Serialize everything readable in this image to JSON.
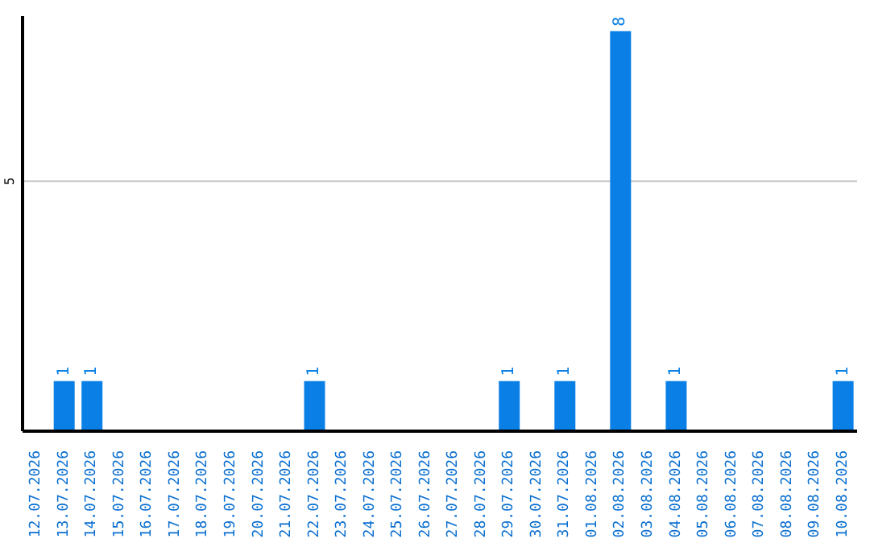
{
  "chart_data": {
    "type": "bar",
    "categories": [
      "12.07.2026",
      "13.07.2026",
      "14.07.2026",
      "15.07.2026",
      "16.07.2026",
      "17.07.2026",
      "18.07.2026",
      "19.07.2026",
      "20.07.2026",
      "21.07.2026",
      "22.07.2026",
      "23.07.2026",
      "24.07.2026",
      "25.07.2026",
      "26.07.2026",
      "27.07.2026",
      "28.07.2026",
      "29.07.2026",
      "30.07.2026",
      "31.07.2026",
      "01.08.2026",
      "02.08.2026",
      "03.08.2026",
      "04.08.2026",
      "05.08.2026",
      "06.08.2026",
      "07.08.2026",
      "08.08.2026",
      "09.08.2026",
      "10.08.2026"
    ],
    "values": [
      0,
      1,
      1,
      0,
      0,
      0,
      0,
      0,
      0,
      0,
      1,
      0,
      0,
      0,
      0,
      0,
      0,
      1,
      0,
      1,
      0,
      8,
      0,
      1,
      0,
      0,
      0,
      0,
      0,
      1
    ],
    "value_labels": [
      null,
      "1",
      "1",
      null,
      null,
      null,
      null,
      null,
      null,
      null,
      "1",
      null,
      null,
      null,
      null,
      null,
      null,
      "1",
      null,
      "1",
      null,
      "8",
      null,
      "1",
      null,
      null,
      null,
      null,
      null,
      "1"
    ],
    "color": "#0a80e6",
    "ylim": [
      0,
      8.3
    ],
    "yticks": [
      5
    ],
    "grid": "y"
  }
}
